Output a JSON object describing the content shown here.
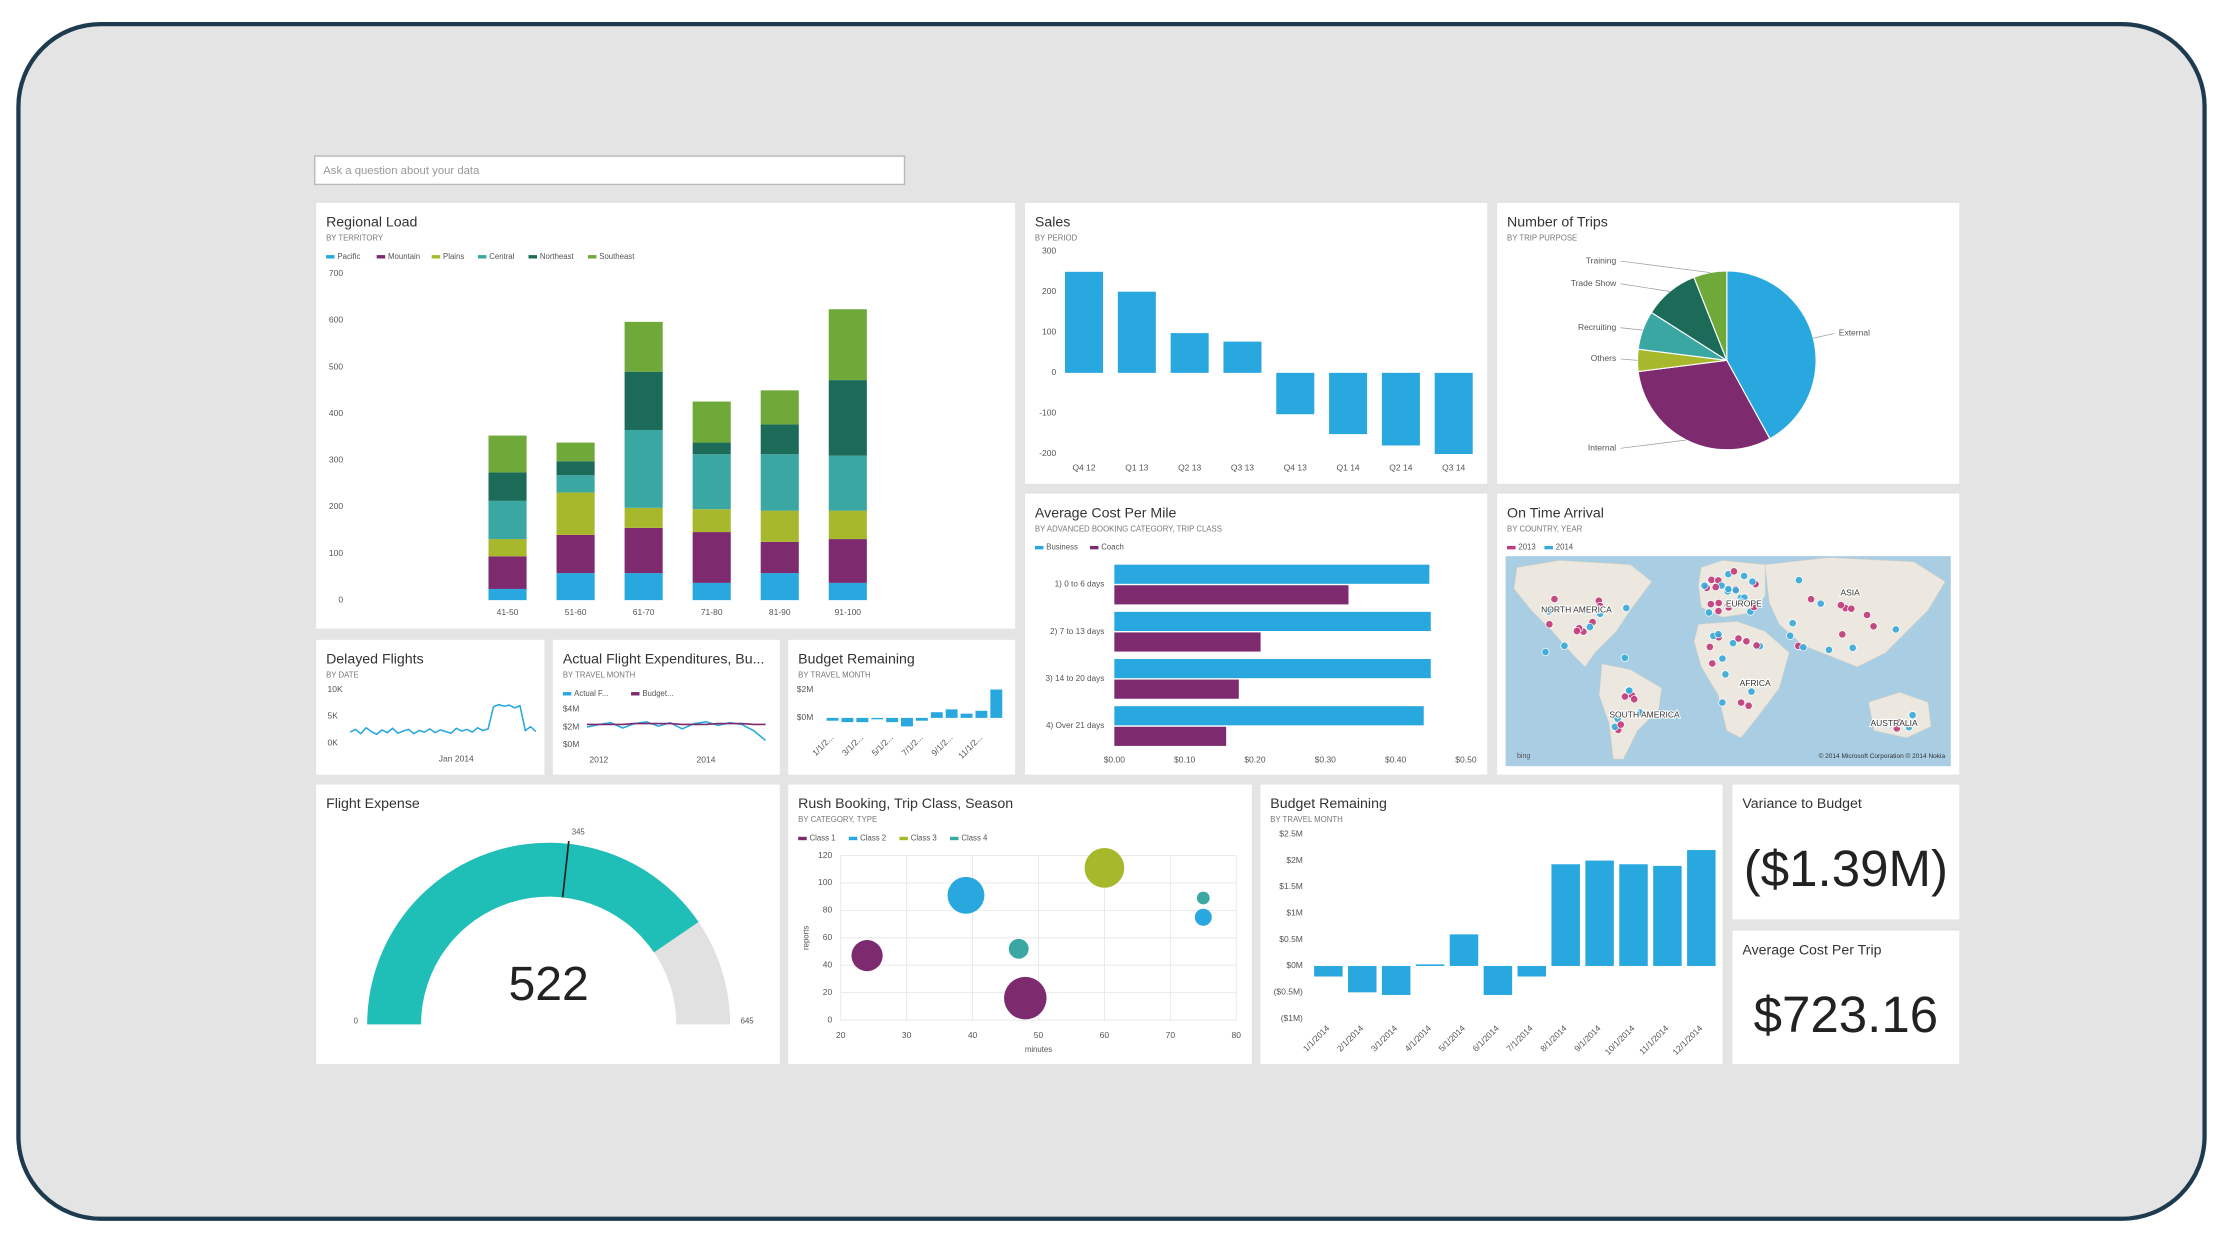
{
  "search": {
    "placeholder": "Ask a question about your data"
  },
  "tiles": {
    "regional_load": {
      "type": "stacked_bar",
      "title": "Regional Load",
      "subtitle": "BY TERRITORY",
      "categories": [
        "41-50",
        "51-60",
        "61-70",
        "71-80",
        "81-90",
        "91-100"
      ],
      "series": [
        {
          "name": "Pacific",
          "color": "#29a8e0",
          "values": [
            24,
            58,
            58,
            37,
            58,
            37
          ]
        },
        {
          "name": "Mountain",
          "color": "#7d2a6f",
          "values": [
            70,
            82,
            97,
            109,
            67,
            94
          ]
        },
        {
          "name": "Plains",
          "color": "#a8b82c",
          "values": [
            37,
            91,
            43,
            49,
            67,
            61
          ]
        },
        {
          "name": "Central",
          "color": "#3aa7a2",
          "values": [
            82,
            37,
            167,
            118,
            121,
            118
          ]
        },
        {
          "name": "Northeast",
          "color": "#1b6b58",
          "values": [
            61,
            30,
            125,
            25,
            64,
            162
          ]
        },
        {
          "name": "Southeast",
          "color": "#6fa93a",
          "values": [
            79,
            40,
            107,
            88,
            73,
            152
          ]
        }
      ],
      "ylim": [
        0,
        700
      ],
      "yticks": [
        0,
        100,
        200,
        300,
        400,
        500,
        600,
        700
      ]
    },
    "sales": {
      "type": "bar",
      "title": "Sales",
      "subtitle": "BY PERIOD",
      "color": "#29a8e0",
      "categories": [
        "Q4 12",
        "Q1 13",
        "Q2 13",
        "Q3 13",
        "Q4 13",
        "Q1 14",
        "Q2 14",
        "Q3 14"
      ],
      "values": [
        249,
        200,
        98,
        77,
        -102,
        -151,
        -179,
        -200
      ],
      "ylim": [
        -200,
        300
      ],
      "yticks": [
        -200,
        -100,
        0,
        100,
        200,
        300
      ]
    },
    "number_of_trips": {
      "type": "pie",
      "title": "Number of Trips",
      "subtitle": "BY TRIP PURPOSE",
      "categories": [
        "External",
        "Internal",
        "Others",
        "Recruiting",
        "Trade Show",
        "Training"
      ],
      "values": [
        42,
        31,
        4,
        7,
        10,
        6
      ],
      "colors": [
        "#29a8e0",
        "#7d2a6f",
        "#a8b82c",
        "#3aa7a2",
        "#1b6b58",
        "#6fa93a"
      ]
    },
    "average_cost_per_mile": {
      "type": "hbar",
      "title": "Average Cost Per Mile",
      "subtitle": "BY ADVANCED BOOKING CATEGORY, TRIP CLASS",
      "categories": [
        "1) 0 to 6 days",
        "2) 7 to 13 days",
        "3) 14 to 20 days",
        "4) Over 21 days"
      ],
      "series": [
        {
          "name": "Business",
          "color": "#29a8e0",
          "values": [
            0.448,
            0.45,
            0.45,
            0.44
          ]
        },
        {
          "name": "Coach",
          "color": "#7d2a6f",
          "values": [
            0.333,
            0.208,
            0.177,
            0.159
          ]
        }
      ],
      "xlim": [
        0,
        0.5
      ],
      "xticks": [
        {
          "value": 0,
          "label": "$0.00"
        },
        {
          "value": 0.1,
          "label": "$0.10"
        },
        {
          "value": 0.2,
          "label": "$0.20"
        },
        {
          "value": 0.3,
          "label": "$0.30"
        },
        {
          "value": 0.4,
          "label": "$0.40"
        },
        {
          "value": 0.5,
          "label": "$0.50"
        }
      ]
    },
    "on_time_arrival": {
      "type": "map",
      "title": "On Time Arrival",
      "subtitle": "BY COUNTRY, YEAR",
      "series": [
        {
          "name": "2013",
          "color": "#c0397a"
        },
        {
          "name": "2014",
          "color": "#36a9d8"
        }
      ],
      "labels": [
        "NORTH AMERICA",
        "EUROPE",
        "ASIA",
        "AFRICA",
        "SOUTH AMERICA",
        "AUSTRALIA"
      ],
      "logo": "bing",
      "credit": "© 2014 Microsoft Corporation   © 2014 Nokia"
    },
    "delayed_flights": {
      "type": "line",
      "title": "Delayed Flights",
      "subtitle": "BY DATE",
      "color": "#29a8e0",
      "categories": [
        null,
        null,
        null,
        null,
        null,
        null,
        null,
        null,
        null,
        null,
        null,
        null,
        null,
        null,
        null,
        null,
        null,
        null,
        null,
        null,
        "Jan 2014",
        null,
        null,
        null,
        null,
        null,
        null,
        null,
        null,
        null,
        null,
        null,
        null,
        null,
        null,
        null
      ],
      "values": [
        2100,
        2600,
        1800,
        2900,
        2200,
        1700,
        2500,
        2000,
        2800,
        1900,
        2300,
        2600,
        1800,
        2400,
        2100,
        2700,
        2000,
        2500,
        2200,
        1900,
        2800,
        2300,
        2600,
        2100,
        2900,
        2400,
        2700,
        6800,
        7200,
        6900,
        7100,
        6600,
        7000,
        2400,
        3100,
        2200
      ],
      "ylim": [
        0,
        10000
      ],
      "yticks": [
        {
          "value": 0,
          "label": "0K"
        },
        {
          "value": 5000,
          "label": "5K"
        },
        {
          "value": 10000,
          "label": "10K"
        }
      ]
    },
    "actual_flight_expenditures": {
      "type": "line",
      "title": "Actual Flight Expenditures, Bu...",
      "subtitle": "BY TRAVEL MONTH",
      "categories": [
        null,
        "2012",
        null,
        null,
        null,
        null,
        null,
        null,
        null,
        null,
        "2014",
        null,
        null,
        null,
        null,
        null
      ],
      "series": [
        {
          "name": "Actual F...",
          "color": "#29a8e0",
          "values": [
            2.0,
            2.3,
            2.5,
            1.9,
            2.4,
            2.6,
            2.1,
            2.5,
            1.8,
            2.4,
            2.6,
            2.2,
            2.5,
            2.3,
            1.6,
            0.5
          ]
        },
        {
          "name": "Budget...",
          "color": "#7d2a6f",
          "values": [
            2.3,
            2.3,
            2.3,
            2.3,
            2.4,
            2.4,
            2.4,
            2.4,
            2.3,
            2.3,
            2.3,
            2.4,
            2.4,
            2.4,
            2.3,
            2.3
          ]
        }
      ],
      "ylim": [
        0,
        4
      ],
      "yticks": [
        {
          "value": 0,
          "label": "$0M"
        },
        {
          "value": 2,
          "label": "$2M"
        },
        {
          "value": 4,
          "label": "$4M"
        }
      ]
    },
    "budget_remaining_small": {
      "type": "bar",
      "title": "Budget Remaining",
      "subtitle": "BY TRAVEL MONTH",
      "color": "#29a8e0",
      "categories": [
        "1/1/2...",
        null,
        "3/1/2...",
        null,
        "5/1/2...",
        null,
        "7/1/2...",
        null,
        "9/1/2...",
        null,
        "11/1/2...",
        null
      ],
      "values": [
        -0.2,
        -0.3,
        -0.3,
        -0.1,
        -0.3,
        -0.6,
        -0.2,
        0.4,
        0.6,
        0.3,
        0.5,
        2.0
      ],
      "ylim": [
        -1,
        2.2
      ],
      "yticks": [
        {
          "value": 0,
          "label": "$0M"
        },
        {
          "value": 2,
          "label": "$2M"
        }
      ]
    },
    "flight_expense": {
      "type": "gauge",
      "title": "Flight Expense",
      "value": 522,
      "min": 0,
      "max": 645,
      "target": 345,
      "color": "#1fbfb8",
      "track_color": "#e1e1e1"
    },
    "rush_booking": {
      "type": "scatter",
      "title": "Rush Booking, Trip Class, Season",
      "subtitle": "BY CATEGORY, TYPE",
      "xlabel": "minutes",
      "ylabel": "reports",
      "series": [
        {
          "name": "Class 1",
          "color": "#7d2a6f",
          "x": [
            24,
            48
          ],
          "y": [
            47,
            16
          ],
          "size": [
            11,
            15
          ]
        },
        {
          "name": "Class 2",
          "color": "#29a8e0",
          "x": [
            39,
            75
          ],
          "y": [
            91,
            75
          ],
          "size": [
            13,
            6
          ]
        },
        {
          "name": "Class 3",
          "color": "#a8b82c",
          "x": [
            60
          ],
          "y": [
            111
          ],
          "size": [
            14
          ]
        },
        {
          "name": "Class 4",
          "color": "#3aa7a2",
          "x": [
            47,
            75
          ],
          "y": [
            52,
            89
          ],
          "size": [
            7,
            4.5
          ]
        }
      ],
      "xlim": [
        20,
        80
      ],
      "xticks": [
        20,
        30,
        40,
        50,
        60,
        70,
        80
      ],
      "ylim": [
        0,
        120
      ],
      "yticks": [
        0,
        20,
        40,
        60,
        80,
        100,
        120
      ],
      "grid": true
    },
    "budget_remaining": {
      "type": "bar",
      "title": "Budget Remaining",
      "subtitle": "BY TRAVEL MONTH",
      "color": "#29a8e0",
      "categories": [
        "1/1/2014",
        "2/1/2014",
        "3/1/2014",
        "4/1/2014",
        "5/1/2014",
        "6/1/2014",
        "7/1/2014",
        "8/1/2014",
        "9/1/2014",
        "10/1/2014",
        "11/1/2014",
        "12/1/2014"
      ],
      "values": [
        -0.2,
        -0.5,
        -0.55,
        0.03,
        0.6,
        -0.55,
        -0.2,
        1.93,
        2.0,
        1.93,
        1.9,
        2.2
      ],
      "ylim": [
        -1,
        2.5
      ],
      "yticks": [
        {
          "value": -1,
          "label": "($1M)"
        },
        {
          "value": -0.5,
          "label": "($0.5M)"
        },
        {
          "value": 0,
          "label": "$0M"
        },
        {
          "value": 0.5,
          "label": "$0.5M"
        },
        {
          "value": 1,
          "label": "$1M"
        },
        {
          "value": 1.5,
          "label": "$1.5M"
        },
        {
          "value": 2,
          "label": "$2M"
        },
        {
          "value": 2.5,
          "label": "$2.5M"
        }
      ]
    },
    "variance_to_budget": {
      "type": "kpi",
      "title": "Variance to Budget",
      "value": "($1.39M)"
    },
    "average_cost_per_trip": {
      "type": "kpi",
      "title": "Average Cost Per Trip",
      "value": "$723.16"
    }
  }
}
